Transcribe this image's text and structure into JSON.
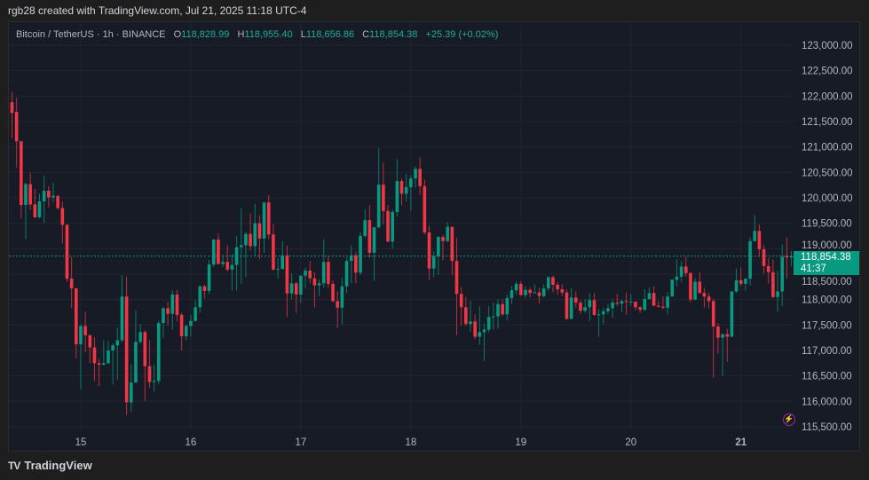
{
  "credit": "rgb28 created with TradingView.com, Jul 21, 2025 11:18 UTC-4",
  "legend": {
    "symbol": "Bitcoin / TetherUS · 1h · BINANCE",
    "o_label": "O",
    "open": "118,828.99",
    "h_label": "H",
    "high": "118,955.40",
    "l_label": "L",
    "low": "118,656.86",
    "c_label": "C",
    "close": "118,854.38",
    "change": "+25.39 (+0.02%)"
  },
  "price_label": {
    "price": "118,854.38",
    "countdown": "41:37"
  },
  "events_icon": "calendar-events-icon",
  "logo": {
    "name": "TradingView"
  },
  "colors": {
    "up": "#089981",
    "down": "#f23645",
    "background": "#171b26",
    "events": "#9c27b0"
  },
  "chart_data": {
    "type": "candlestick",
    "interval": "1h",
    "ylim": [
      115500,
      123000
    ],
    "y_ticks": [
      "123,000.00",
      "122,500.00",
      "122,000.00",
      "121,500.00",
      "121,000.00",
      "120,500.00",
      "120,000.00",
      "119,500.00",
      "119,000.00",
      "118,500.00",
      "118,000.00",
      "117,500.00",
      "117,000.00",
      "116,500.00",
      "116,000.00",
      "115,500.00"
    ],
    "y_tick_values": [
      123000,
      122500,
      122000,
      121500,
      121000,
      120500,
      120000,
      119500,
      119000,
      118500,
      118000,
      117500,
      117000,
      116500,
      116000,
      115500
    ],
    "x_ticks": [
      {
        "label": "15",
        "candle": 15
      },
      {
        "label": "16",
        "candle": 39
      },
      {
        "label": "17",
        "candle": 63
      },
      {
        "label": "18",
        "candle": 87
      },
      {
        "label": "19",
        "candle": 111
      },
      {
        "label": "20",
        "candle": 135
      },
      {
        "label": "21",
        "candle": 159
      }
    ],
    "grid": true,
    "last_price": 118854.38,
    "candles_ohlc": [
      [
        121880,
        122090,
        121170,
        121670
      ],
      [
        121690,
        121970,
        120590,
        121110
      ],
      [
        121110,
        121120,
        119600,
        119860
      ],
      [
        119860,
        120300,
        119190,
        120270
      ],
      [
        120270,
        120500,
        119760,
        119870
      ],
      [
        119870,
        120180,
        119600,
        119620
      ],
      [
        119620,
        120080,
        119600,
        119930
      ],
      [
        119930,
        120430,
        119510,
        120140
      ],
      [
        120140,
        120230,
        119810,
        120010
      ],
      [
        120010,
        120300,
        119910,
        120040
      ],
      [
        120040,
        120050,
        119760,
        119800
      ],
      [
        119800,
        119930,
        119100,
        119470
      ],
      [
        119470,
        119480,
        118350,
        118410
      ],
      [
        118410,
        118840,
        117830,
        118220
      ],
      [
        118220,
        118230,
        116840,
        117120
      ],
      [
        117120,
        117510,
        116240,
        117480
      ],
      [
        117480,
        117760,
        116970,
        117300
      ],
      [
        117300,
        117310,
        116750,
        117060
      ],
      [
        117060,
        117260,
        116400,
        116750
      ],
      [
        116750,
        116840,
        116300,
        116720
      ],
      [
        116720,
        117200,
        116700,
        116750
      ],
      [
        116750,
        117190,
        116730,
        117000
      ],
      [
        117000,
        117140,
        116330,
        117100
      ],
      [
        117100,
        117450,
        116420,
        117200
      ],
      [
        117200,
        118480,
        117160,
        118060
      ],
      [
        118060,
        118450,
        115730,
        115980
      ],
      [
        115980,
        116730,
        115790,
        116370
      ],
      [
        116370,
        117790,
        116360,
        117170
      ],
      [
        117170,
        117520,
        117130,
        117360
      ],
      [
        117360,
        117400,
        116010,
        116690
      ],
      [
        116690,
        117200,
        116270,
        116380
      ],
      [
        116380,
        116720,
        116190,
        116400
      ],
      [
        116400,
        117580,
        116340,
        117540
      ],
      [
        117540,
        117860,
        117250,
        117830
      ],
      [
        117830,
        117950,
        117490,
        117720
      ],
      [
        117720,
        118180,
        117410,
        118100
      ],
      [
        118100,
        118190,
        117570,
        117700
      ],
      [
        117700,
        117740,
        117000,
        117280
      ],
      [
        117280,
        117510,
        117200,
        117480
      ],
      [
        117480,
        117700,
        117270,
        117580
      ],
      [
        117580,
        117990,
        117570,
        117850
      ],
      [
        117850,
        118280,
        117740,
        118260
      ],
      [
        118260,
        118290,
        118020,
        118170
      ],
      [
        118170,
        118780,
        118110,
        118690
      ],
      [
        118690,
        119190,
        118640,
        119180
      ],
      [
        119180,
        119300,
        118690,
        118700
      ],
      [
        118700,
        118880,
        118640,
        118740
      ],
      [
        118740,
        119060,
        118550,
        118590
      ],
      [
        118590,
        118900,
        118180,
        118680
      ],
      [
        118680,
        119250,
        118180,
        119030
      ],
      [
        119030,
        119790,
        118310,
        119070
      ],
      [
        119070,
        119330,
        118450,
        119290
      ],
      [
        119290,
        119690,
        118960,
        119050
      ],
      [
        119050,
        119880,
        118860,
        119500
      ],
      [
        119500,
        119660,
        118800,
        119200
      ],
      [
        119200,
        119910,
        118920,
        119910
      ],
      [
        119910,
        120050,
        119190,
        119280
      ],
      [
        119280,
        119480,
        118570,
        118590
      ],
      [
        118590,
        118820,
        118410,
        118600
      ],
      [
        118600,
        119150,
        118600,
        118870
      ],
      [
        118870,
        119060,
        117660,
        118120
      ],
      [
        118120,
        118510,
        118010,
        118320
      ],
      [
        118320,
        118350,
        117740,
        118100
      ],
      [
        118100,
        118470,
        117940,
        118470
      ],
      [
        118470,
        118630,
        118220,
        118570
      ],
      [
        118570,
        118760,
        118320,
        118420
      ],
      [
        118420,
        118540,
        117840,
        118280
      ],
      [
        118280,
        118400,
        118070,
        118320
      ],
      [
        118320,
        119180,
        118230,
        118740
      ],
      [
        118740,
        118860,
        118230,
        118310
      ],
      [
        118310,
        118380,
        117950,
        117970
      ],
      [
        117970,
        118160,
        117440,
        117840
      ],
      [
        117840,
        118430,
        117510,
        118260
      ],
      [
        118260,
        118830,
        118130,
        118760
      ],
      [
        118760,
        119060,
        118320,
        118870
      ],
      [
        118870,
        118940,
        118320,
        118530
      ],
      [
        118530,
        119330,
        118480,
        119250
      ],
      [
        119250,
        119770,
        119220,
        119560
      ],
      [
        119560,
        119860,
        118820,
        118920
      ],
      [
        118920,
        119420,
        118370,
        119420
      ],
      [
        119420,
        120980,
        119410,
        120260
      ],
      [
        120260,
        120690,
        119480,
        119740
      ],
      [
        119740,
        119860,
        119130,
        119140
      ],
      [
        119140,
        119770,
        119000,
        119720
      ],
      [
        119720,
        120760,
        119630,
        120330
      ],
      [
        120330,
        120380,
        119850,
        120080
      ],
      [
        120080,
        120470,
        119930,
        120210
      ],
      [
        120210,
        120450,
        119750,
        120380
      ],
      [
        120380,
        120620,
        120200,
        120570
      ],
      [
        120570,
        120800,
        120060,
        120230
      ],
      [
        120230,
        120360,
        119280,
        119320
      ],
      [
        119320,
        119450,
        118390,
        118610
      ],
      [
        118610,
        118950,
        118440,
        118850
      ],
      [
        118850,
        119250,
        118480,
        119230
      ],
      [
        119230,
        119270,
        118770,
        119150
      ],
      [
        119150,
        119520,
        119130,
        119430
      ],
      [
        119430,
        119430,
        118480,
        118760
      ],
      [
        118760,
        119210,
        117300,
        118110
      ],
      [
        118110,
        118250,
        117480,
        117850
      ],
      [
        117850,
        118050,
        117480,
        117520
      ],
      [
        117520,
        117980,
        117370,
        117570
      ],
      [
        117570,
        117710,
        117220,
        117270
      ],
      [
        117270,
        117870,
        117110,
        117360
      ],
      [
        117360,
        117530,
        116790,
        117410
      ],
      [
        117410,
        117870,
        117360,
        117660
      ],
      [
        117660,
        117940,
        117410,
        117670
      ],
      [
        117670,
        118010,
        117430,
        117910
      ],
      [
        117910,
        118010,
        117680,
        117710
      ],
      [
        117710,
        118100,
        117590,
        118030
      ],
      [
        118030,
        118270,
        117910,
        118180
      ],
      [
        118180,
        118360,
        118100,
        118310
      ],
      [
        118310,
        118360,
        118070,
        118090
      ],
      [
        118090,
        118260,
        118030,
        118190
      ],
      [
        118190,
        118240,
        118040,
        118130
      ],
      [
        118130,
        118300,
        118130,
        118140
      ],
      [
        118140,
        118230,
        117920,
        118070
      ],
      [
        118070,
        118300,
        118040,
        118220
      ],
      [
        118220,
        118460,
        118170,
        118440
      ],
      [
        118440,
        118470,
        118140,
        118290
      ],
      [
        118290,
        118340,
        118090,
        118200
      ],
      [
        118200,
        118300,
        118070,
        118140
      ],
      [
        118140,
        118200,
        117600,
        117620
      ],
      [
        117620,
        118220,
        117620,
        118040
      ],
      [
        118040,
        118160,
        117840,
        117940
      ],
      [
        117940,
        117990,
        117720,
        117780
      ],
      [
        117780,
        118010,
        117740,
        117850
      ],
      [
        117850,
        118130,
        117580,
        117990
      ],
      [
        117990,
        118130,
        117680,
        117700
      ],
      [
        117700,
        117810,
        117270,
        117710
      ],
      [
        117710,
        117840,
        117520,
        117770
      ],
      [
        117770,
        117910,
        117720,
        117830
      ],
      [
        117830,
        118010,
        117640,
        117940
      ],
      [
        117940,
        118110,
        117870,
        117920
      ],
      [
        117920,
        117990,
        117750,
        117970
      ],
      [
        117970,
        118140,
        117700,
        117960
      ],
      [
        117960,
        118110,
        117880,
        117960
      ],
      [
        117960,
        117950,
        117790,
        117850
      ],
      [
        117850,
        117870,
        117740,
        117800
      ],
      [
        117800,
        118200,
        117780,
        118010
      ],
      [
        118010,
        118240,
        118000,
        118130
      ],
      [
        118130,
        118260,
        117870,
        117880
      ],
      [
        117880,
        117970,
        117840,
        117860
      ],
      [
        117860,
        118060,
        117810,
        117840
      ],
      [
        117840,
        118150,
        117710,
        118060
      ],
      [
        118060,
        118400,
        118060,
        118390
      ],
      [
        118390,
        118790,
        118260,
        118450
      ],
      [
        118450,
        118760,
        118340,
        118650
      ],
      [
        118650,
        118840,
        118450,
        118520
      ],
      [
        118520,
        118540,
        117950,
        118000
      ],
      [
        118000,
        118420,
        117990,
        118350
      ],
      [
        118350,
        118540,
        118120,
        118130
      ],
      [
        118130,
        118230,
        117840,
        118060
      ],
      [
        118060,
        118130,
        117830,
        117970
      ],
      [
        117970,
        118010,
        116460,
        117470
      ],
      [
        117470,
        117540,
        116940,
        117250
      ],
      [
        117250,
        117330,
        116500,
        117320
      ],
      [
        117320,
        117430,
        116770,
        117270
      ],
      [
        117270,
        118160,
        117270,
        118160
      ],
      [
        118160,
        118610,
        118130,
        118380
      ],
      [
        118380,
        118630,
        118260,
        118310
      ],
      [
        118310,
        118420,
        118180,
        118410
      ],
      [
        118410,
        119220,
        118280,
        119150
      ],
      [
        119150,
        119660,
        119140,
        119350
      ],
      [
        119350,
        119480,
        118840,
        118990
      ],
      [
        118990,
        119080,
        118510,
        118660
      ],
      [
        118660,
        118820,
        118320,
        118540
      ],
      [
        118540,
        118790,
        118030,
        118050
      ],
      [
        118050,
        118570,
        117760,
        118160
      ],
      [
        118160,
        119080,
        117870,
        118840
      ],
      [
        118860,
        119220,
        118420,
        118829
      ],
      [
        118828.99,
        118955.4,
        118656.86,
        118854.38
      ]
    ]
  }
}
